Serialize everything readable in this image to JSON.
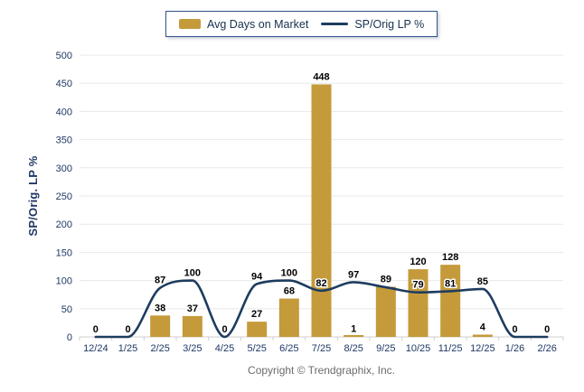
{
  "legend": {
    "bar_label": "Avg Days on Market",
    "line_label": "SP/Orig LP %"
  },
  "y_axis_title": "SP/Orig. LP %",
  "copyright": "Copyright © Trendgraphix, Inc.",
  "colors": {
    "bar": "#C49A3B",
    "line": "#1E3C5F",
    "axis_text": "#1F3864",
    "value_label": "#000000",
    "grid": "#E8E8E8",
    "axis_line": "#CFCFCF",
    "legend_border": "#31548F"
  },
  "chart_data": {
    "type": "bar",
    "subtype": "bar+line combo",
    "title": "",
    "xlabel": "",
    "ylabel": "SP/Orig. LP %",
    "ylim": [
      0,
      500
    ],
    "ytick_step": 50,
    "grid": true,
    "legend_position": "top",
    "categories": [
      "12/24",
      "1/25",
      "2/25",
      "3/25",
      "4/25",
      "5/25",
      "6/25",
      "7/25",
      "8/25",
      "9/25",
      "10/25",
      "11/25",
      "12/25",
      "1/26",
      "2/26"
    ],
    "series": [
      {
        "name": "Avg Days on Market",
        "type": "bar",
        "values": [
          0,
          0,
          38,
          37,
          0,
          27,
          68,
          448,
          1,
          89,
          120,
          128,
          4,
          0,
          0
        ]
      },
      {
        "name": "SP/Orig LP %",
        "type": "line",
        "smooth": true,
        "values": [
          0,
          0,
          87,
          100,
          0,
          94,
          100,
          82,
          97,
          88,
          79,
          81,
          85,
          0,
          0
        ]
      }
    ]
  }
}
